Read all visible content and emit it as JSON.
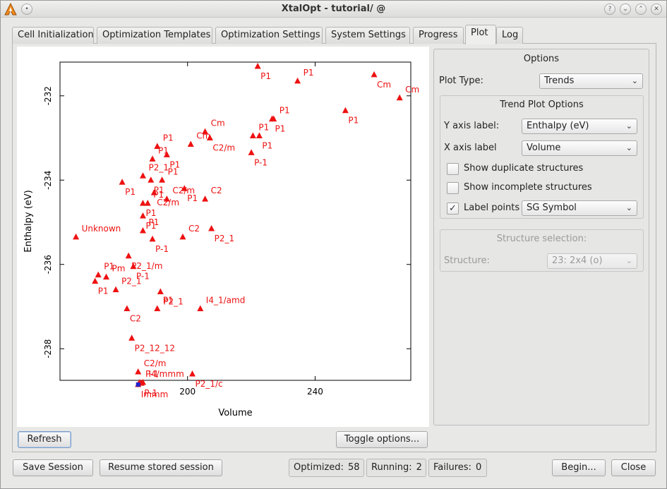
{
  "window": {
    "title": "XtalOpt - tutorial/ @"
  },
  "tabs": [
    {
      "label": "Cell Initialization"
    },
    {
      "label": "Optimization Templates"
    },
    {
      "label": "Optimization Settings"
    },
    {
      "label": "System Settings"
    },
    {
      "label": "Progress"
    },
    {
      "label": "Plot"
    },
    {
      "label": "Log"
    }
  ],
  "options": {
    "title": "Options",
    "plot_type_label": "Plot Type:",
    "plot_type_value": "Trends",
    "trend_group_title": "Trend Plot Options",
    "y_axis_label_label": "Y axis label:",
    "y_axis_label_value": "Enthalpy (eV)",
    "x_axis_label_label": "X axis label",
    "x_axis_label_value": "Volume",
    "show_duplicate": "Show duplicate structures",
    "show_duplicate_checked": false,
    "show_incomplete": "Show incomplete structures",
    "show_incomplete_checked": false,
    "label_points": "Label points",
    "label_points_checked": true,
    "label_points_value": "SG Symbol",
    "structure_selection_title": "Structure selection:",
    "structure_label": "Structure:",
    "structure_value": "23: 2x4 (o)"
  },
  "plot_buttons": {
    "refresh": "Refresh",
    "toggle_options": "Toggle options..."
  },
  "bottom": {
    "save_session": "Save Session",
    "resume_session": "Resume stored session",
    "optimized_label": "Optimized:",
    "optimized_value": "58",
    "running_label": "Running:",
    "running_value": "2",
    "failures_label": "Failures:",
    "failures_value": "0",
    "begin": "Begin...",
    "close": "Close"
  },
  "colors": {
    "marker": "#ee1111",
    "selected_marker": "#2222cc"
  },
  "chart_data": {
    "type": "scatter",
    "xlabel": "Volume",
    "ylabel": "Enthalpy (eV)",
    "xlim": [
      160,
      270
    ],
    "ylim": [
      -238.75,
      -231.2
    ],
    "xticks": [
      200,
      240
    ],
    "yticks": [
      -232,
      -234,
      -236,
      -238
    ],
    "grid": false,
    "points": [
      {
        "x": 222.0,
        "y": -231.3,
        "label": "P1"
      },
      {
        "x": 234.5,
        "y": -231.65,
        "label": "P1"
      },
      {
        "x": 258.5,
        "y": -231.5,
        "label": "Cm"
      },
      {
        "x": 266.5,
        "y": -232.05,
        "label": "Cm"
      },
      {
        "x": 249.5,
        "y": -232.35,
        "label": "P1"
      },
      {
        "x": 227.0,
        "y": -232.55,
        "label": "P1"
      },
      {
        "x": 226.5,
        "y": -232.55,
        "label": "P1"
      },
      {
        "x": 220.5,
        "y": -232.95,
        "label": "P1"
      },
      {
        "x": 222.5,
        "y": -232.95,
        "label": "P1"
      },
      {
        "x": 205.5,
        "y": -232.85,
        "label": "Cm"
      },
      {
        "x": 207.0,
        "y": -233.0,
        "label": "C2/m"
      },
      {
        "x": 201.0,
        "y": -233.15,
        "label": "Cm"
      },
      {
        "x": 220.0,
        "y": -233.35,
        "label": "P-1"
      },
      {
        "x": 190.5,
        "y": -233.2,
        "label": "P1"
      },
      {
        "x": 193.5,
        "y": -233.4,
        "label": "P1"
      },
      {
        "x": 189.0,
        "y": -233.5,
        "label": "P1"
      },
      {
        "x": 179.5,
        "y": -234.05,
        "label": "P1"
      },
      {
        "x": 186.0,
        "y": -233.9,
        "label": "P2_1"
      },
      {
        "x": 188.5,
        "y": -234.0,
        "label": "P1"
      },
      {
        "x": 192.0,
        "y": -234.0,
        "label": "P1"
      },
      {
        "x": 189.5,
        "y": -234.3,
        "label": "C2/m"
      },
      {
        "x": 187.5,
        "y": -234.55,
        "label": "P1"
      },
      {
        "x": 186.0,
        "y": -234.55,
        "label": "P1"
      },
      {
        "x": 193.5,
        "y": -234.45,
        "label": "C2/m"
      },
      {
        "x": 199.0,
        "y": -234.2,
        "label": "P1"
      },
      {
        "x": 205.5,
        "y": -234.45,
        "label": "C2"
      },
      {
        "x": 186.0,
        "y": -234.85,
        "label": "P1"
      },
      {
        "x": 186.0,
        "y": -235.2,
        "label": "P1"
      },
      {
        "x": 189.0,
        "y": -235.4,
        "label": "P-1"
      },
      {
        "x": 198.5,
        "y": -235.35,
        "label": "C2"
      },
      {
        "x": 207.5,
        "y": -235.15,
        "label": "P2_1"
      },
      {
        "x": 165.0,
        "y": -235.35,
        "label": "Unknown"
      },
      {
        "x": 181.5,
        "y": -235.8,
        "label": "P2_1/m"
      },
      {
        "x": 172.0,
        "y": -236.25,
        "label": "P1"
      },
      {
        "x": 171.0,
        "y": -236.4,
        "label": "P1"
      },
      {
        "x": 174.5,
        "y": -236.3,
        "label": "Pm"
      },
      {
        "x": 183.0,
        "y": -236.05,
        "label": "P-1"
      },
      {
        "x": 177.5,
        "y": -236.6,
        "label": "P2_1"
      },
      {
        "x": 191.5,
        "y": -236.65,
        "label": "P2_1"
      },
      {
        "x": 190.5,
        "y": -237.05,
        "label": "P1"
      },
      {
        "x": 181.0,
        "y": -237.05,
        "label": "C2"
      },
      {
        "x": 204.0,
        "y": -237.05,
        "label": "I4_1/amd"
      },
      {
        "x": 182.5,
        "y": -237.75,
        "label": "P2_12_12"
      },
      {
        "x": 184.5,
        "y": -238.55,
        "label": "C2/m"
      },
      {
        "x": 184.5,
        "y": -238.85,
        "label": "Immm"
      },
      {
        "x": 185.0,
        "y": -238.8,
        "label": "P-1"
      },
      {
        "x": 185.5,
        "y": -238.82,
        "label": "P-1"
      },
      {
        "x": 186.0,
        "y": -238.8,
        "label": "I4/mmm"
      },
      {
        "x": 201.5,
        "y": -238.6,
        "label": "P2_1/c"
      }
    ],
    "selected_point": {
      "x": 184.5,
      "y": -238.85,
      "label": "Immm"
    }
  }
}
